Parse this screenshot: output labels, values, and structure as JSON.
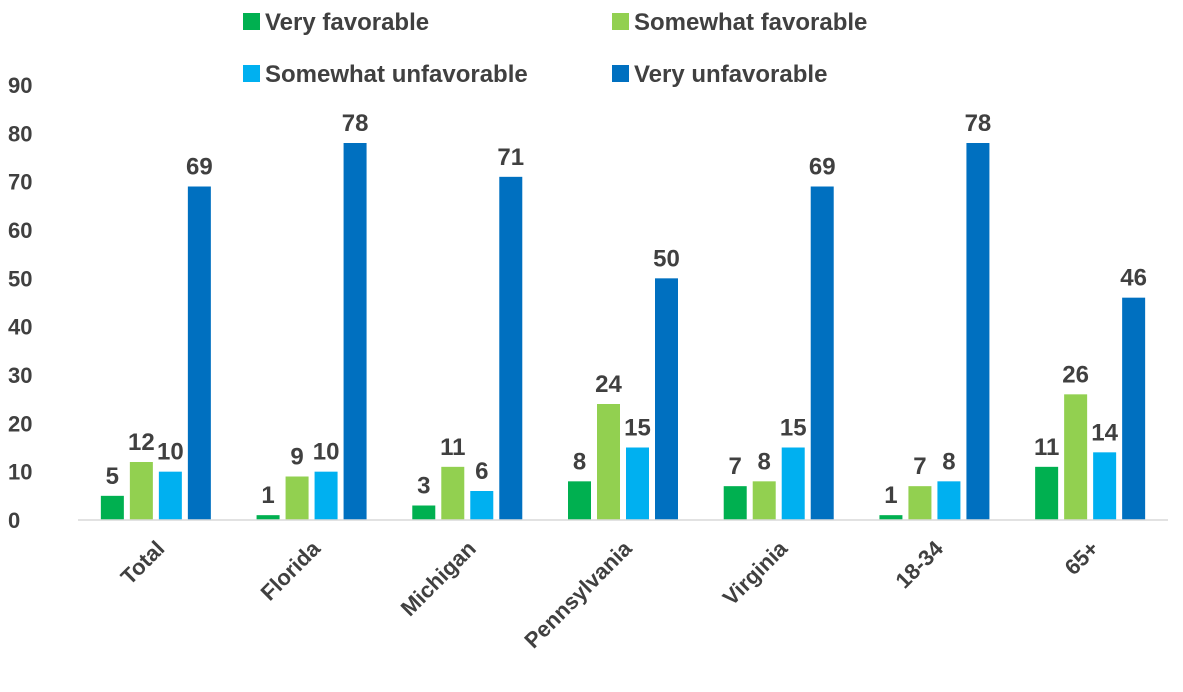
{
  "chart_data": {
    "type": "bar",
    "categories": [
      "Total",
      "Florida",
      "Michigan",
      "Pennsylvania",
      "Virginia",
      "18-34",
      "65+"
    ],
    "series": [
      {
        "name": "Very favorable",
        "color": "#00B050",
        "values": [
          5,
          1,
          3,
          8,
          7,
          1,
          11
        ]
      },
      {
        "name": "Somewhat favorable",
        "color": "#92D050",
        "values": [
          12,
          9,
          11,
          24,
          8,
          7,
          26
        ]
      },
      {
        "name": "Somewhat unfavorable",
        "color": "#00B0F0",
        "values": [
          10,
          10,
          6,
          15,
          15,
          8,
          14
        ]
      },
      {
        "name": "Very unfavorable",
        "color": "#0070C0",
        "values": [
          69,
          78,
          71,
          50,
          69,
          78,
          46
        ]
      }
    ],
    "yticks": [
      "0",
      "10",
      "20",
      "30",
      "40",
      "50",
      "60",
      "70",
      "80",
      "90"
    ],
    "ylim": [
      0,
      90
    ],
    "grid": false,
    "legend_position": "top",
    "title": "",
    "xlabel": "",
    "ylabel": ""
  }
}
